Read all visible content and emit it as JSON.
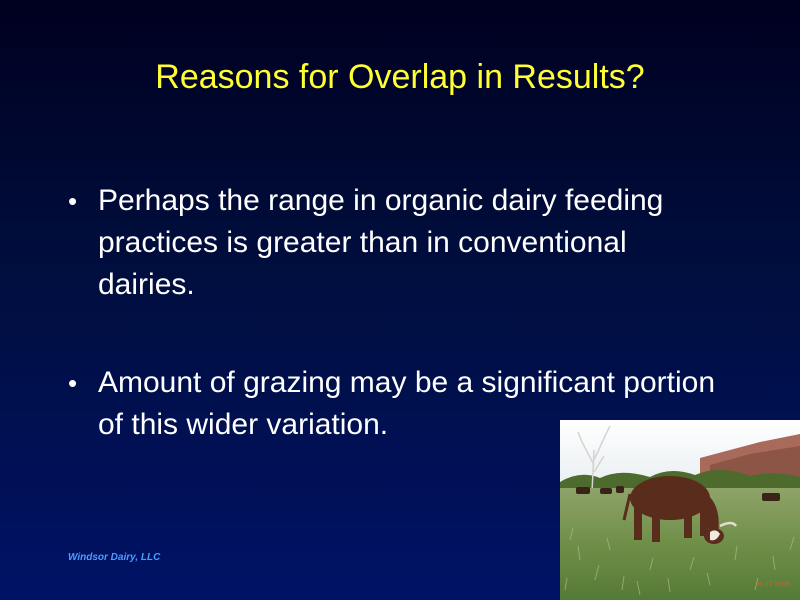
{
  "slide": {
    "title": "Reasons for Overlap in Results?",
    "bullets": [
      {
        "text": "Perhaps the range in organic dairy feeding practices is greater than in conventional dairies."
      },
      {
        "text": "Amount of grazing may be a significant portion of this wider variation."
      }
    ],
    "bullet_marker": "•",
    "footer": "Windsor Dairy, LLC"
  },
  "photo": {
    "subject": "cattle grazing in pasture",
    "date_stamp": "05 07 2006"
  },
  "colors": {
    "title": "#ffff33",
    "body_text": "#ffffff",
    "footer": "#4d9cff",
    "background_top": "#000020",
    "background_bottom": "#001266",
    "date_stamp": "#ff4a1a"
  }
}
